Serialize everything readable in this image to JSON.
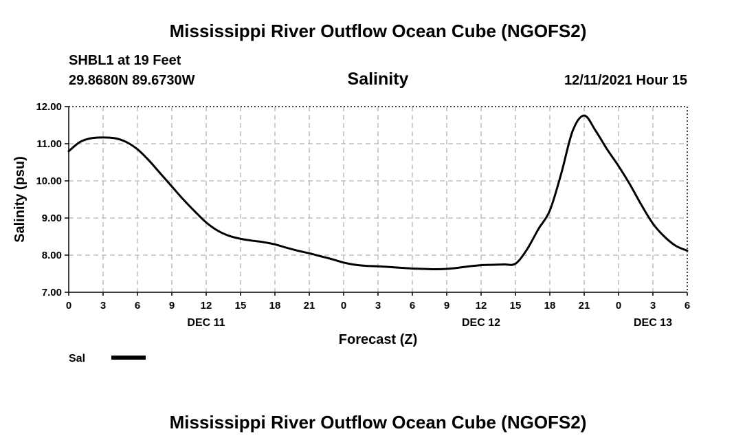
{
  "header": {
    "title": "Mississippi River Outflow Ocean Cube (NGOFS2)",
    "station": "SHBL1 at 19 Feet",
    "coordinates": "29.8680N  89.6730W",
    "datetime": "12/11/2021 Hour 15"
  },
  "footer": {
    "title": "Mississippi River Outflow Ocean Cube (NGOFS2)"
  },
  "colors": {
    "line": "#000000",
    "grid": "#b4b4b4",
    "background": "#ffffff"
  },
  "chart_data": {
    "type": "line",
    "title": "Salinity",
    "xlabel": "Forecast (Z)",
    "ylabel": "Salinity (psu)",
    "x_tick_labels": [
      "0",
      "3",
      "6",
      "9",
      "12",
      "15",
      "18",
      "21",
      "0",
      "3",
      "6",
      "9",
      "12",
      "15",
      "18",
      "21",
      "0",
      "3",
      "6"
    ],
    "x_date_labels": [
      {
        "label": "DEC 11",
        "at_tick": 4
      },
      {
        "label": "DEC 12",
        "at_tick": 12
      },
      {
        "label": "DEC 13",
        "at_tick": 17
      }
    ],
    "y_tick_labels": [
      "7.00",
      "8.00",
      "9.00",
      "10.00",
      "11.00",
      "12.00"
    ],
    "ylim": [
      7.0,
      12.0
    ],
    "xlim_hours": [
      0,
      54
    ],
    "grid": true,
    "legend_position": "bottom-left",
    "series": [
      {
        "name": "Sal",
        "x_hours": [
          0,
          1,
          2,
          3,
          4,
          5,
          6,
          7,
          8,
          9,
          10,
          11,
          12,
          13,
          14,
          15,
          16,
          17,
          18,
          19,
          20,
          21,
          22,
          23,
          24,
          25,
          26,
          27,
          28,
          29,
          30,
          31,
          32,
          33,
          34,
          35,
          36,
          37,
          38,
          39,
          40,
          41,
          42,
          43,
          44,
          45,
          46,
          47,
          48,
          49,
          50,
          51,
          52,
          53,
          54
        ],
        "values": [
          10.8,
          11.05,
          11.15,
          11.17,
          11.15,
          11.05,
          10.85,
          10.55,
          10.2,
          9.85,
          9.5,
          9.18,
          8.88,
          8.66,
          8.52,
          8.44,
          8.39,
          8.35,
          8.29,
          8.2,
          8.12,
          8.05,
          7.97,
          7.89,
          7.8,
          7.74,
          7.71,
          7.7,
          7.68,
          7.66,
          7.64,
          7.63,
          7.62,
          7.63,
          7.66,
          7.7,
          7.73,
          7.74,
          7.75,
          7.77,
          8.15,
          8.7,
          9.2,
          10.2,
          11.35,
          11.76,
          11.35,
          10.85,
          10.4,
          9.9,
          9.35,
          8.85,
          8.5,
          8.25,
          8.12
        ]
      }
    ]
  }
}
